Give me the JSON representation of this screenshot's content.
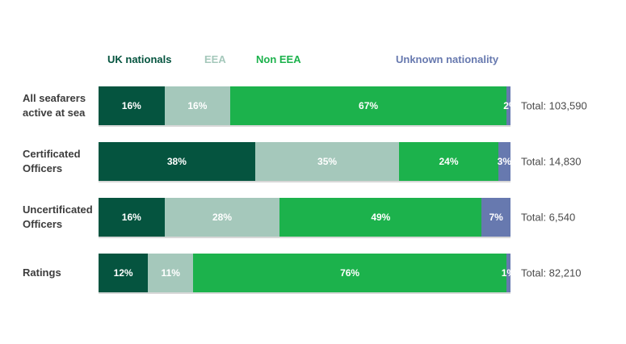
{
  "chart_data": {
    "type": "bar",
    "stacked": true,
    "orientation": "horizontal",
    "unit": "%",
    "xlim": [
      0,
      100
    ],
    "grid": false,
    "legend_position": "top",
    "series": [
      {
        "name": "UK nationals",
        "color": "#05543f",
        "values": [
          16,
          38,
          16,
          12
        ]
      },
      {
        "name": "EEA",
        "color": "#a5c8bb",
        "values": [
          16,
          35,
          28,
          11
        ]
      },
      {
        "name": "Non EEA",
        "color": "#1cb24c",
        "values": [
          67,
          24,
          49,
          76
        ]
      },
      {
        "name": "Unknown nationality",
        "color": "#6779af",
        "values": [
          2,
          3,
          7,
          1
        ]
      }
    ],
    "categories": [
      "All seafarers active at sea",
      "Certificated Officers",
      "Uncertificated Officers",
      "Ratings"
    ],
    "category_display": [
      "All seafarers\nactive at sea",
      "Certificated\nOfficers",
      "Uncertificated\nOfficers",
      "Ratings"
    ],
    "totals": [
      103590,
      14830,
      6540,
      82210
    ],
    "total_labels": [
      "Total: 103,590",
      "Total: 14,830",
      "Total: 6,540",
      "Total: 82,210"
    ]
  }
}
